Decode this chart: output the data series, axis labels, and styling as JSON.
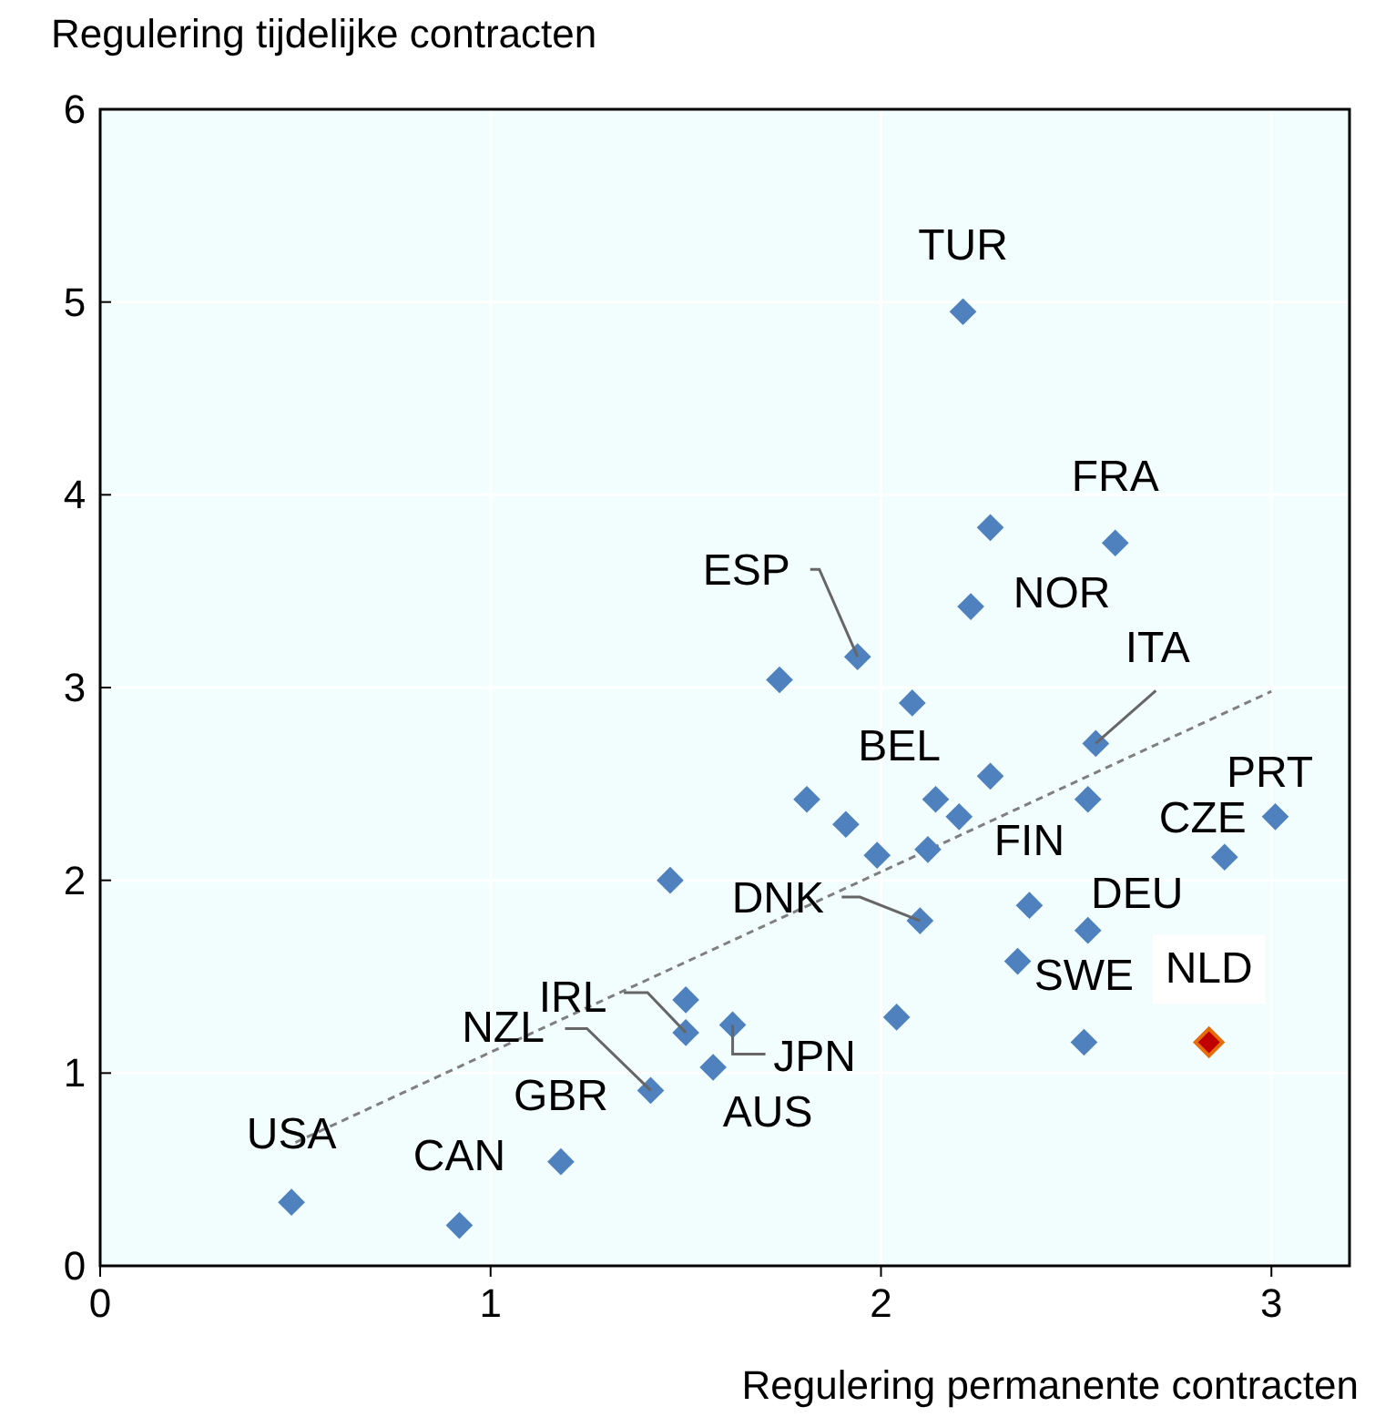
{
  "chart_data": {
    "type": "scatter",
    "xlabel": "Regulering permanente contracten",
    "ylabel": "Regulering tijdelijke contracten",
    "xlim": [
      0,
      3.2
    ],
    "ylim": [
      0,
      6
    ],
    "xticks": [
      0,
      1,
      2,
      3
    ],
    "yticks": [
      0,
      1,
      2,
      3,
      4,
      5,
      6
    ],
    "grid": true,
    "marker": "diamond",
    "series": [
      {
        "color": "#4e81bd",
        "x": [
          0.49,
          0.92,
          1.18,
          1.41,
          1.5,
          1.5,
          1.46,
          1.57,
          1.62,
          2.21,
          2.28,
          2.6,
          2.23,
          1.94,
          1.74,
          2.08,
          2.55,
          2.28,
          1.81,
          2.14,
          2.53,
          1.91,
          2.2,
          1.99,
          2.12,
          3.01,
          2.88,
          2.1,
          2.38,
          2.53,
          2.35,
          2.04,
          2.52
        ],
        "values": [
          0.33,
          0.21,
          0.54,
          0.91,
          1.21,
          1.38,
          2.0,
          1.03,
          1.25,
          4.95,
          3.83,
          3.75,
          3.42,
          3.16,
          3.04,
          2.92,
          2.71,
          2.54,
          2.42,
          2.42,
          2.42,
          2.29,
          2.33,
          2.13,
          2.16,
          2.33,
          2.12,
          1.79,
          1.87,
          1.74,
          1.58,
          1.29,
          1.16
        ]
      },
      {
        "color": "#c00000",
        "x": [
          2.84
        ],
        "values": [
          1.16
        ]
      },
      {
        "type": "line",
        "color": "#7f7f7f",
        "line_style": "dashed",
        "marker": "none",
        "x": [
          0.5,
          3.0
        ],
        "values": [
          0.64,
          2.98
        ]
      }
    ],
    "annotations": [
      {
        "text": "TUR",
        "x": 2.21,
        "y": 4.95
      },
      {
        "text": "FRA",
        "x": 2.6,
        "y": 3.75
      },
      {
        "text": "NOR",
        "x": 2.23,
        "y": 3.42
      },
      {
        "text": "ESP",
        "x": 1.94,
        "y": 3.16
      },
      {
        "text": "ITA",
        "x": 2.55,
        "y": 2.71
      },
      {
        "text": "BEL",
        "x": 2.14,
        "y": 2.42
      },
      {
        "text": "FIN",
        "x": 2.38,
        "y": 1.87
      },
      {
        "text": "PRT",
        "x": 3.01,
        "y": 2.33
      },
      {
        "text": "CZE",
        "x": 2.88,
        "y": 2.12
      },
      {
        "text": "DEU",
        "x": 2.53,
        "y": 1.74
      },
      {
        "text": "SWE",
        "x": 2.52,
        "y": 1.16
      },
      {
        "text": "NLD",
        "x": 2.84,
        "y": 1.16
      },
      {
        "text": "DNK",
        "x": 2.1,
        "y": 1.79
      },
      {
        "text": "JPN",
        "x": 1.62,
        "y": 1.25
      },
      {
        "text": "AUS",
        "x": 1.57,
        "y": 1.03
      },
      {
        "text": "IRL",
        "x": 1.5,
        "y": 1.21
      },
      {
        "text": "NZL",
        "x": 1.41,
        "y": 0.91
      },
      {
        "text": "GBR",
        "x": 1.18,
        "y": 0.54
      },
      {
        "text": "CAN",
        "x": 0.92,
        "y": 0.21
      },
      {
        "text": "USA",
        "x": 0.49,
        "y": 0.33
      }
    ]
  }
}
